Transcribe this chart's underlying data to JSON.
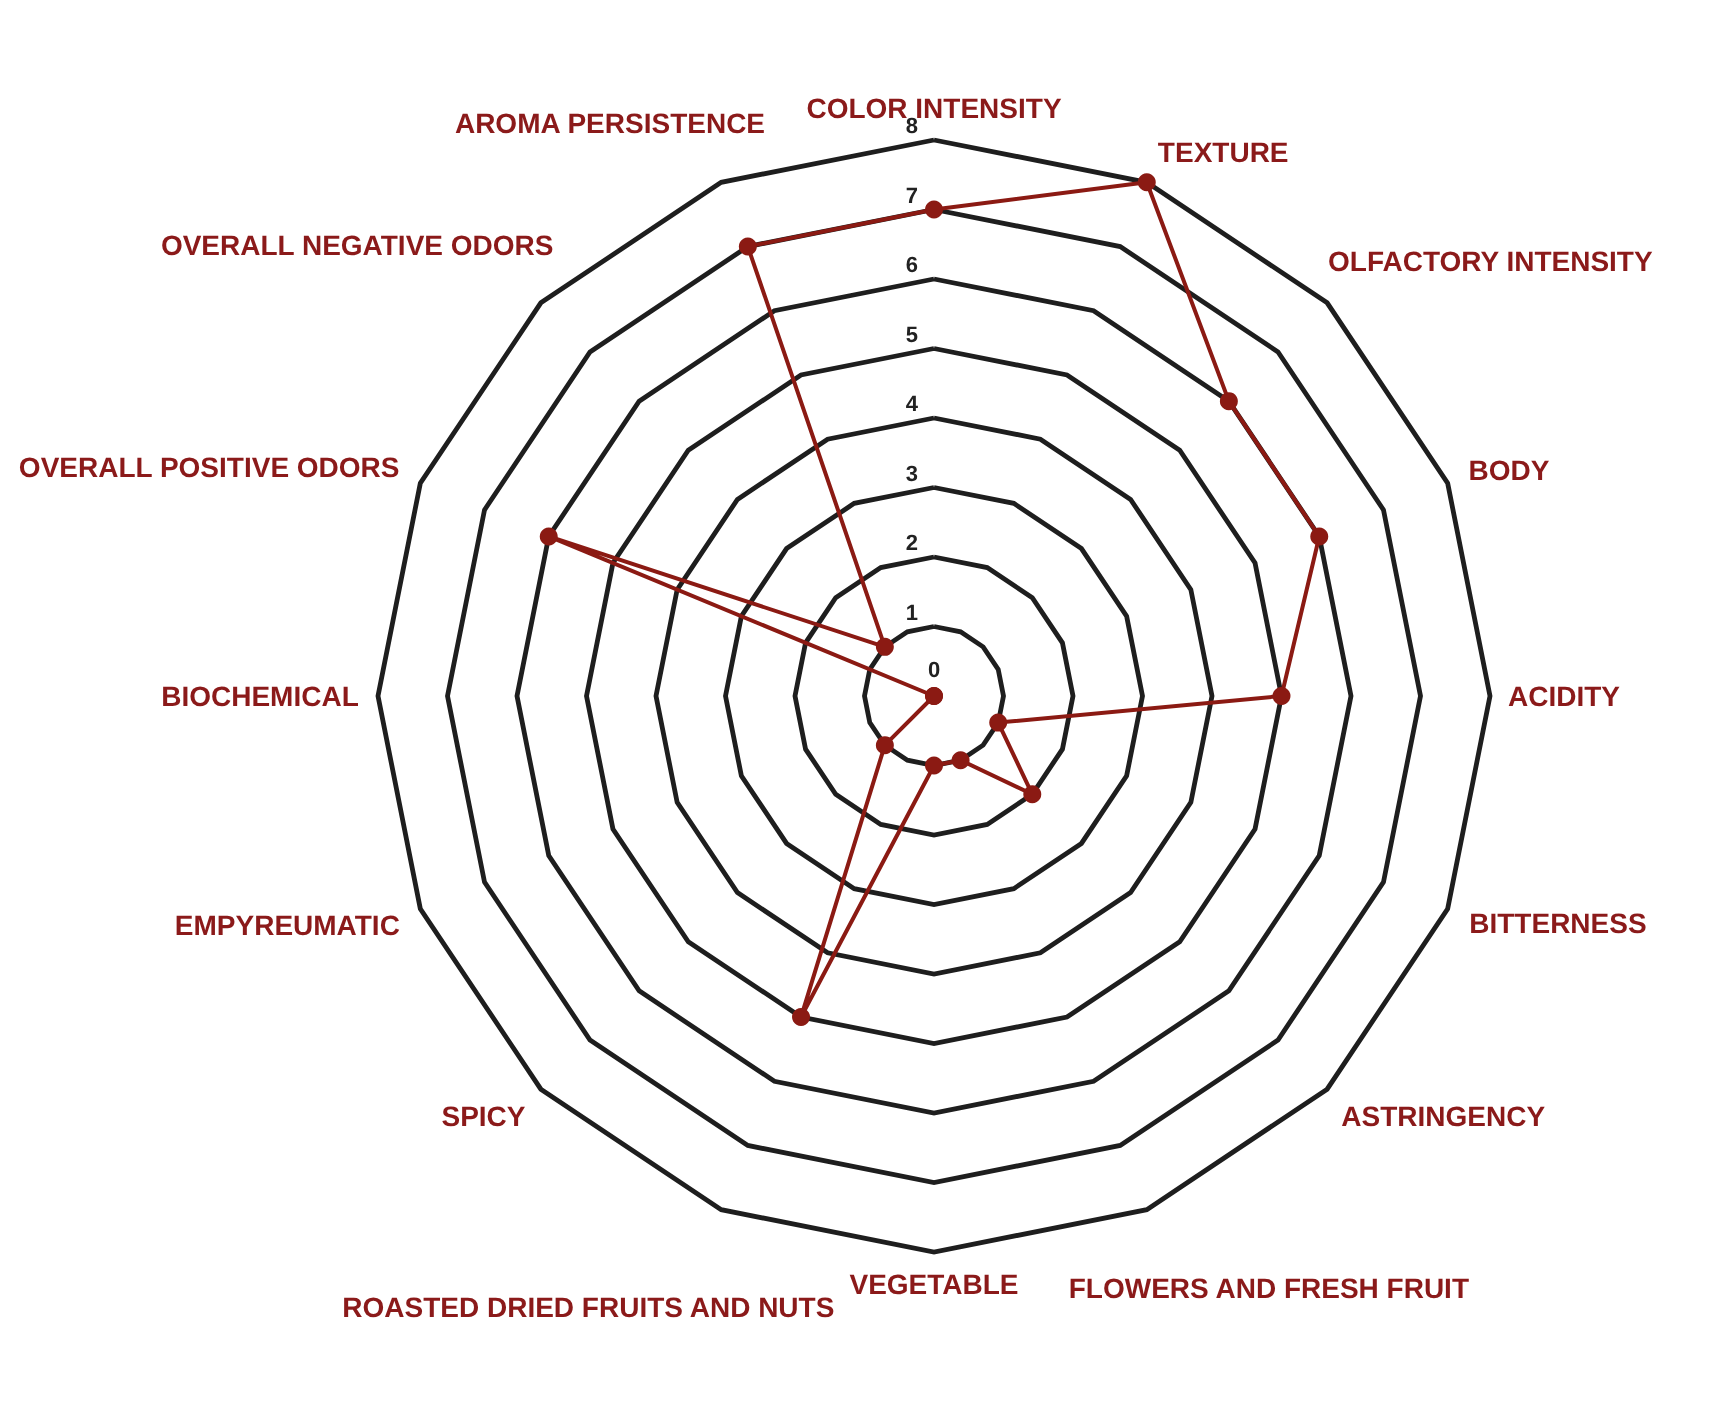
{
  "chart_data": {
    "type": "radar",
    "categories": [
      "COLOR INTENSITY",
      "TEXTURE",
      "OLFACTORY INTENSITY",
      "BODY",
      "ACIDITY",
      "BITTERNESS",
      "ASTRINGENCY",
      "FLOWERS AND FRESH FRUIT",
      "VEGETABLE",
      "ROASTED DRIED FRUITS AND NUTS",
      "SPICY",
      "EMPYREUMATIC",
      "BIOCHEMICAL",
      "OVERALL POSITIVE ODORS",
      "OVERALL NEGATIVE ODORS",
      "AROMA PERSISTENCE"
    ],
    "series": [
      {
        "color": "#8b1a13",
        "values": [
          7,
          8,
          6,
          6,
          5,
          1,
          2,
          1,
          1,
          5,
          1,
          0,
          0,
          6,
          1,
          7
        ]
      }
    ],
    "ylim": [
      0,
      8
    ],
    "yticks": [
      0,
      1,
      2,
      3,
      4,
      5,
      6,
      7,
      8
    ],
    "grid": true,
    "marker": "circle",
    "line_style": "solid"
  }
}
